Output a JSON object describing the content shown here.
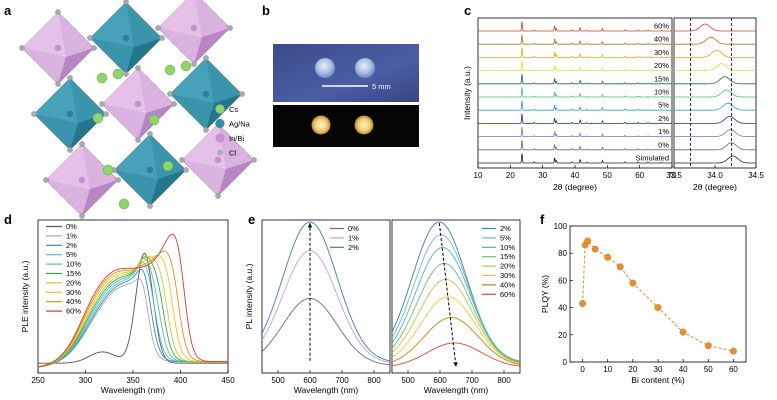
{
  "panels": {
    "a": {
      "label": "a",
      "legend": [
        {
          "name": "Cs",
          "color": "#8fd46a"
        },
        {
          "name": "Ag/Na",
          "color": "#2f8fa8"
        },
        {
          "name": "In/Bi",
          "color": "#c792d2"
        },
        {
          "name": "Cl",
          "color": "#a9a9b0"
        }
      ]
    },
    "b": {
      "label": "b",
      "scale_text": "5 mm"
    },
    "c": {
      "label": "c"
    },
    "d": {
      "label": "d"
    },
    "e": {
      "label": "e"
    },
    "f": {
      "label": "f"
    }
  },
  "chart_data": [
    {
      "id": "xrd",
      "type": "line",
      "ylabel": "Intensity (a.u.)",
      "xlabel_left": "2θ (degree)",
      "xlabel_right": "2θ (degree)",
      "xlim_left": [
        10,
        70
      ],
      "xlim_right": [
        33.5,
        34.5
      ],
      "xticks_left": [
        "10",
        "20",
        "30",
        "40",
        "50",
        "60",
        "70"
      ],
      "xticks_right": [
        "33.5",
        "34.0",
        "34.5"
      ],
      "dashed_lines_right": [
        33.7,
        34.2
      ],
      "series": [
        {
          "name": "Simulated",
          "color": "#222222",
          "peak_right": 34.22
        },
        {
          "name": "0%",
          "color": "#6b6b6b",
          "peak_right": 34.2
        },
        {
          "name": "1%",
          "color": "#6f79c8",
          "peak_right": 34.19
        },
        {
          "name": "2%",
          "color": "#1f2f9c",
          "peak_right": 34.18
        },
        {
          "name": "5%",
          "color": "#2aa3c9",
          "peak_right": 34.16
        },
        {
          "name": "10%",
          "color": "#4cc06a",
          "peak_right": 34.14
        },
        {
          "name": "15%",
          "color": "#1e6b3d",
          "peak_right": 34.12
        },
        {
          "name": "20%",
          "color": "#e6dd2c",
          "peak_right": 34.08
        },
        {
          "name": "30%",
          "color": "#e6a21c",
          "peak_right": 34.02
        },
        {
          "name": "40%",
          "color": "#a5761a",
          "peak_right": 33.95
        },
        {
          "name": "60%",
          "color": "#e03a2c",
          "peak_right": 33.88
        }
      ]
    },
    {
      "id": "ple",
      "type": "line",
      "xlabel": "Wavelength (nm)",
      "ylabel": "PLE intensity (a.u.)",
      "xlim": [
        250,
        450
      ],
      "xticks": [
        "250",
        "300",
        "350",
        "400",
        "450"
      ],
      "series": [
        {
          "name": "0%",
          "color": "#555555",
          "edge": 362
        },
        {
          "name": "1%",
          "color": "#a8a8a8",
          "edge": 366
        },
        {
          "name": "2%",
          "color": "#3a86c3",
          "edge": 370
        },
        {
          "name": "5%",
          "color": "#4fbfd2",
          "edge": 374
        },
        {
          "name": "10%",
          "color": "#56c38a",
          "edge": 378
        },
        {
          "name": "15%",
          "color": "#3ba34a",
          "edge": 382
        },
        {
          "name": "20%",
          "color": "#b9cf3a",
          "edge": 386
        },
        {
          "name": "30%",
          "color": "#f0c21a",
          "edge": 392
        },
        {
          "name": "40%",
          "color": "#e88a1a",
          "edge": 398
        },
        {
          "name": "60%",
          "color": "#d93a2c",
          "edge": 404
        }
      ]
    },
    {
      "id": "pl_low",
      "type": "line",
      "xlabel": "Wavelength (nm)",
      "ylabel": "PL intensity (a.u.)",
      "xlim": [
        450,
        850
      ],
      "xticks": [
        "500",
        "600",
        "700",
        "800"
      ],
      "series": [
        {
          "name": "0%",
          "color": "#6e6e6e",
          "peak_x": 600,
          "peak_y": 0.44
        },
        {
          "name": "1%",
          "color": "#b9a6d8",
          "peak_x": 600,
          "peak_y": 0.74
        },
        {
          "name": "2%",
          "color": "#3d7fa6",
          "peak_x": 600,
          "peak_y": 0.92
        }
      ]
    },
    {
      "id": "pl_high",
      "type": "line",
      "xlabel": "Wavelength (nm)",
      "xlim": [
        450,
        850
      ],
      "xticks": [
        "500",
        "600",
        "700",
        "800"
      ],
      "series": [
        {
          "name": "2%",
          "color": "#3d7fa6",
          "peak_x": 598,
          "peak_y": 0.92
        },
        {
          "name": "5%",
          "color": "#6fb6d6",
          "peak_x": 603,
          "peak_y": 0.84
        },
        {
          "name": "10%",
          "color": "#53b6a7",
          "peak_x": 608,
          "peak_y": 0.76
        },
        {
          "name": "15%",
          "color": "#6cc06f",
          "peak_x": 613,
          "peak_y": 0.66
        },
        {
          "name": "20%",
          "color": "#b2d044",
          "peak_x": 618,
          "peak_y": 0.56
        },
        {
          "name": "30%",
          "color": "#e9c93a",
          "peak_x": 625,
          "peak_y": 0.45
        },
        {
          "name": "40%",
          "color": "#b68916",
          "peak_x": 635,
          "peak_y": 0.32
        },
        {
          "name": "60%",
          "color": "#e0483b",
          "peak_x": 645,
          "peak_y": 0.16
        }
      ]
    },
    {
      "id": "plqy",
      "type": "scatter",
      "xlabel": "Bi content (%)",
      "ylabel": "PLQY (%)",
      "xlim": [
        -5,
        65
      ],
      "ylim": [
        0,
        100
      ],
      "xticks": [
        "0",
        "10",
        "20",
        "30",
        "40",
        "50",
        "60"
      ],
      "yticks": [
        "0",
        "20",
        "40",
        "60",
        "80",
        "100"
      ],
      "color": "#e8912e",
      "x": [
        0,
        1,
        2,
        5,
        10,
        15,
        20,
        30,
        40,
        50,
        60
      ],
      "y": [
        43,
        86,
        89,
        83,
        77,
        70,
        58,
        40,
        22,
        12,
        8
      ]
    }
  ]
}
